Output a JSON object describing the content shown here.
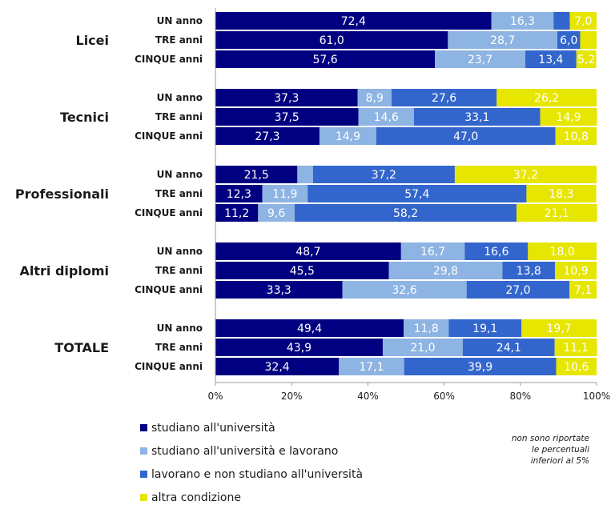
{
  "chart_data": {
    "type": "bar",
    "orientation": "horizontal",
    "stacked": true,
    "groups": [
      {
        "name": "Licei",
        "rows": [
          {
            "label": "UN anno",
            "values": [
              72.4,
              16.3,
              4.3,
              7.0
            ],
            "labels": [
              "72,4",
              "16,3",
              "",
              "7,0"
            ]
          },
          {
            "label": "TRE anni",
            "values": [
              61.0,
              28.7,
              6.0,
              4.3
            ],
            "labels": [
              "61,0",
              "28,7",
              "6,0",
              ""
            ]
          },
          {
            "label": "CINQUE anni",
            "values": [
              57.6,
              23.7,
              13.4,
              5.2
            ],
            "labels": [
              "57,6",
              "23,7",
              "13,4",
              "5,2"
            ]
          }
        ]
      },
      {
        "name": "Tecnici",
        "rows": [
          {
            "label": "UN anno",
            "values": [
              37.3,
              8.9,
              27.6,
              26.2
            ],
            "labels": [
              "37,3",
              "8,9",
              "27,6",
              "26,2"
            ]
          },
          {
            "label": "TRE anni",
            "values": [
              37.5,
              14.6,
              33.1,
              14.9
            ],
            "labels": [
              "37,5",
              "14,6",
              "33,1",
              "14,9"
            ]
          },
          {
            "label": "CINQUE anni",
            "values": [
              27.3,
              14.9,
              47.0,
              10.8
            ],
            "labels": [
              "27,3",
              "14,9",
              "47,0",
              "10,8"
            ]
          }
        ]
      },
      {
        "name": "Professionali",
        "rows": [
          {
            "label": "UN anno",
            "values": [
              21.5,
              4.1,
              37.2,
              37.2
            ],
            "labels": [
              "21,5",
              "",
              "37,2",
              "37,2"
            ]
          },
          {
            "label": "TRE anni",
            "values": [
              12.3,
              11.9,
              57.4,
              18.3
            ],
            "labels": [
              "12,3",
              "11,9",
              "57,4",
              "18,3"
            ]
          },
          {
            "label": "CINQUE anni",
            "values": [
              11.2,
              9.6,
              58.2,
              21.1
            ],
            "labels": [
              "11,2",
              "9,6",
              "58,2",
              "21,1"
            ]
          }
        ]
      },
      {
        "name": "Altri diplomi",
        "rows": [
          {
            "label": "UN anno",
            "values": [
              48.7,
              16.7,
              16.6,
              18.0
            ],
            "labels": [
              "48,7",
              "16,7",
              "16,6",
              "18,0"
            ]
          },
          {
            "label": "TRE anni",
            "values": [
              45.5,
              29.8,
              13.8,
              10.9
            ],
            "labels": [
              "45,5",
              "29,8",
              "13,8",
              "10,9"
            ]
          },
          {
            "label": "CINQUE anni",
            "values": [
              33.3,
              32.6,
              27.0,
              7.1
            ],
            "labels": [
              "33,3",
              "32,6",
              "27,0",
              "7,1"
            ]
          }
        ]
      },
      {
        "name": "TOTALE",
        "rows": [
          {
            "label": "UN anno",
            "values": [
              49.4,
              11.8,
              19.1,
              19.7
            ],
            "labels": [
              "49,4",
              "11,8",
              "19,1",
              "19,7"
            ]
          },
          {
            "label": "TRE anni",
            "values": [
              43.9,
              21.0,
              24.1,
              11.1
            ],
            "labels": [
              "43,9",
              "21,0",
              "24,1",
              "11,1"
            ]
          },
          {
            "label": "CINQUE anni",
            "values": [
              32.4,
              17.1,
              39.9,
              10.6
            ],
            "labels": [
              "32,4",
              "17,1",
              "39,9",
              "10,6"
            ]
          }
        ]
      }
    ],
    "series": [
      {
        "name": "studiano all'università",
        "color": "#000080",
        "label_color": "#ffffff"
      },
      {
        "name": "studiano all'università e lavorano",
        "color": "#8db4e2",
        "label_color": "#ffffff"
      },
      {
        "name": "lavorano e non studiano all'università",
        "color": "#3366cc",
        "label_color": "#ffffff"
      },
      {
        "name": "altra condizione",
        "color": "#e6e600",
        "label_color": "#ffffff"
      }
    ],
    "xlim": [
      0,
      100
    ],
    "xticks": [
      "0%",
      "20%",
      "40%",
      "60%",
      "80%",
      "100%"
    ],
    "legend_position": "bottom-left",
    "note": [
      "non sono riportate",
      "le percentuali",
      "inferiori al 5%"
    ]
  }
}
